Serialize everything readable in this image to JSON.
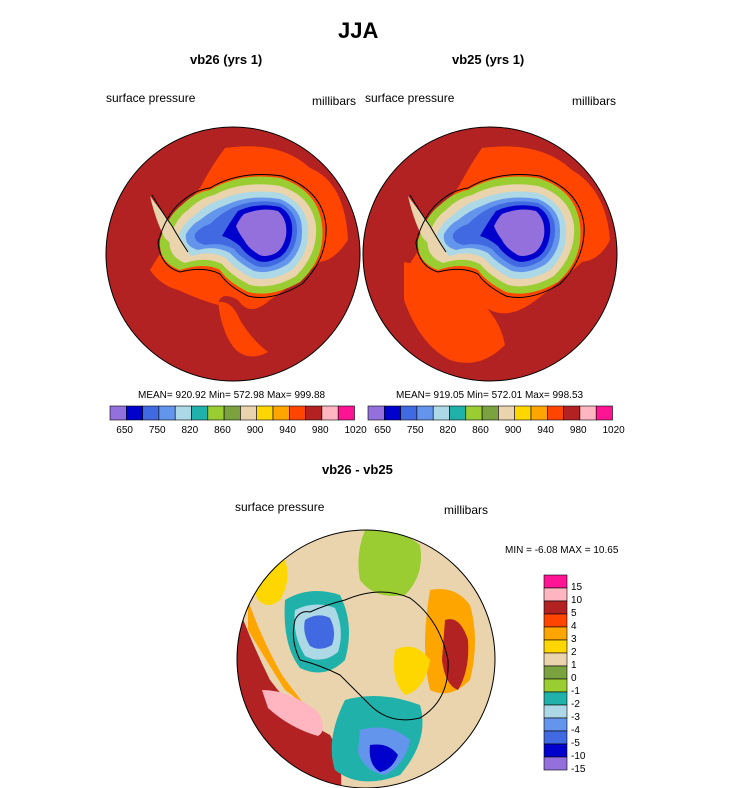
{
  "figure": {
    "season": "JJA"
  },
  "panels": [
    {
      "title": "vb26 (yrs 1)",
      "left_label": "surface pressure",
      "right_label": "millibars",
      "stats": "MEAN= 920.92  Min= 572.98  Max= 999.88"
    },
    {
      "title": "vb25 (yrs 1)",
      "left_label": "surface pressure",
      "right_label": "millibars",
      "stats": "MEAN= 919.05  Min= 572.01  Max= 998.53"
    }
  ],
  "pressure_scale": {
    "colors": [
      "#9370db",
      "#0000cd",
      "#4169e1",
      "#6495ed",
      "#add8e6",
      "#20b2aa",
      "#9acd32",
      "#7ba23f",
      "#ead4ad",
      "#ffd700",
      "#ffa500",
      "#ff4500",
      "#b22222",
      "#ffb6c1",
      "#ff1493"
    ],
    "tick_labels": [
      "650",
      "750",
      "820",
      "860",
      "900",
      "940",
      "980",
      "1020"
    ]
  },
  "diff": {
    "title": "vb26 - vb25",
    "left_label": "surface pressure",
    "right_label": "millibars",
    "minmax": "MIN =  -6.08 MAX =  10.65",
    "scale": {
      "colors": [
        "#ff1493",
        "#ffb6c1",
        "#b22222",
        "#ff4500",
        "#ffa500",
        "#ffd700",
        "#ead4ad",
        "#7ba23f",
        "#9acd32",
        "#20b2aa",
        "#add8e6",
        "#6495ed",
        "#4169e1",
        "#0000cd",
        "#9370db"
      ],
      "labels": [
        "15",
        "10",
        "5",
        "4",
        "3",
        "2",
        "1",
        "0",
        "-1",
        "-2",
        "-3",
        "-4",
        "-5",
        "-10",
        "-15"
      ]
    }
  }
}
